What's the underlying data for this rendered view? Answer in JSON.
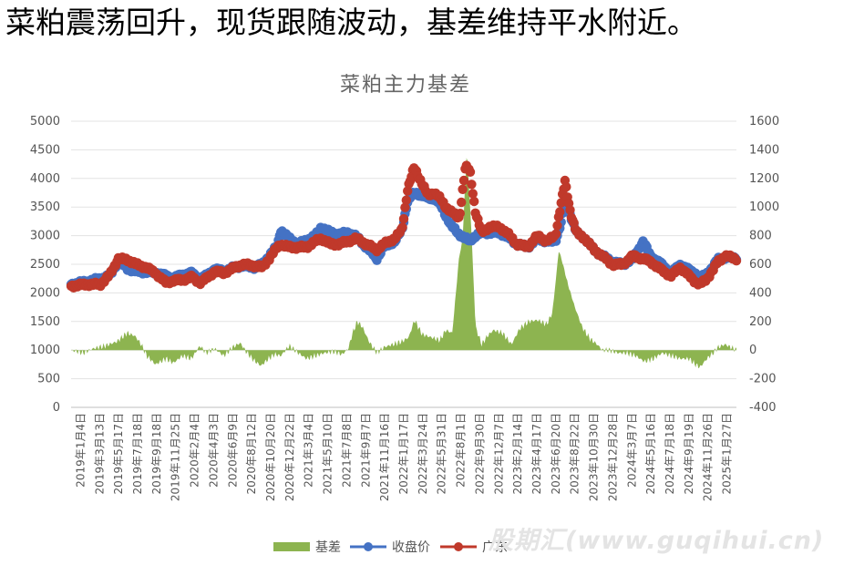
{
  "headline": "菜粕震荡回升，现货跟随波动，基差维持平水附近。",
  "watermark": "股期汇(www.guqihui.cn)",
  "chart_data": {
    "type": "line",
    "title": "菜粕主力基差",
    "y_left": {
      "min": 0,
      "max": 5000,
      "step": 500,
      "ticks": [
        "0",
        "500",
        "1000",
        "1500",
        "2000",
        "2500",
        "3000",
        "3500",
        "4000",
        "4500",
        "5000"
      ]
    },
    "y_right": {
      "min": -400,
      "max": 1600,
      "step": 200,
      "ticks": [
        "-400",
        "-200",
        "0",
        "200",
        "400",
        "600",
        "800",
        "1000",
        "1200",
        "1400",
        "1600"
      ]
    },
    "x_start": "2019-01-04",
    "x_end": "2025-03-31",
    "x_tick_labels": [
      "2019年1月4日",
      "2019年3月13日",
      "2019年5月17日",
      "2019年7月18日",
      "2019年9月18日",
      "2019年11月25日",
      "2020年2月4日",
      "2020年4月3日",
      "2020年6月9日",
      "2020年8月12日",
      "2020年10月20日",
      "2020年12月22日",
      "2021年3月4日",
      "2021年5月10日",
      "2021年7月8日",
      "2021年9月7日",
      "2021年11月16日",
      "2022年1月17日",
      "2022年3月24日",
      "2022年5月31日",
      "2022年8月1日",
      "2022年9月30日",
      "2022年12月7日",
      "2023年2月14日",
      "2023年4月17日",
      "2023年6月20日",
      "2023年8月22日",
      "2023年10月30日",
      "2023年12月28日",
      "2024年3月7日",
      "2024年5月16日",
      "2024年7月18日",
      "2024年9月19日",
      "2024年11月26日",
      "2025年1月27日"
    ],
    "legend_position": "bottom",
    "series": [
      {
        "name": "基差",
        "type": "area",
        "axis": "right",
        "color": "#8db450",
        "x": [
          "2019-01-04",
          "2019-02-15",
          "2019-03-20",
          "2019-05-01",
          "2019-06-10",
          "2019-07-15",
          "2019-08-10",
          "2019-09-01",
          "2019-09-20",
          "2019-10-20",
          "2019-11-25",
          "2019-12-20",
          "2020-01-20",
          "2020-02-20",
          "2020-03-20",
          "2020-04-10",
          "2020-05-10",
          "2020-06-10",
          "2020-07-10",
          "2020-08-05",
          "2020-08-25",
          "2020-09-20",
          "2020-10-15",
          "2020-11-10",
          "2020-12-01",
          "2020-12-22",
          "2021-01-20",
          "2021-02-20",
          "2021-03-20",
          "2021-04-20",
          "2021-05-20",
          "2021-06-20",
          "2021-07-20",
          "2021-08-10",
          "2021-08-25",
          "2021-09-10",
          "2021-09-28",
          "2021-10-20",
          "2021-11-16",
          "2021-12-10",
          "2022-01-10",
          "2022-02-10",
          "2022-03-05",
          "2022-03-25",
          "2022-04-20",
          "2022-05-20",
          "2022-06-20",
          "2022-07-10",
          "2022-08-01",
          "2022-08-25",
          "2022-09-05",
          "2022-09-20",
          "2022-10-05",
          "2022-10-20",
          "2022-11-10",
          "2022-11-30",
          "2022-12-20",
          "2023-01-20",
          "2023-02-20",
          "2023-03-20",
          "2023-04-20",
          "2023-05-20",
          "2023-06-20",
          "2023-07-10",
          "2023-08-01",
          "2023-08-15",
          "2023-09-01",
          "2023-09-25",
          "2023-10-20",
          "2023-11-15",
          "2023-12-10",
          "2023-12-28",
          "2024-01-20",
          "2024-02-20",
          "2024-03-20",
          "2024-04-20",
          "2024-05-20",
          "2024-06-20",
          "2024-07-20",
          "2024-08-20",
          "2024-09-20",
          "2024-10-20",
          "2024-11-10",
          "2024-11-26",
          "2024-12-20",
          "2025-01-10",
          "2025-01-27",
          "2025-02-20",
          "2025-03-31"
        ],
        "values": [
          0,
          -20,
          10,
          30,
          60,
          120,
          100,
          40,
          -40,
          -100,
          -60,
          -90,
          -40,
          -60,
          30,
          -20,
          10,
          -40,
          20,
          50,
          -10,
          -70,
          -110,
          -60,
          -30,
          -40,
          30,
          -20,
          -60,
          -40,
          -20,
          -10,
          -30,
          10,
          120,
          200,
          160,
          60,
          -20,
          20,
          40,
          60,
          90,
          210,
          110,
          90,
          70,
          140,
          120,
          660,
          760,
          1400,
          860,
          160,
          40,
          100,
          140,
          120,
          40,
          150,
          200,
          210,
          180,
          260,
          700,
          600,
          460,
          300,
          160,
          80,
          40,
          0,
          0,
          -20,
          -20,
          -40,
          -80,
          -60,
          -20,
          -40,
          -60,
          -60,
          -100,
          -120,
          -60,
          -20,
          20,
          40,
          0
        ]
      },
      {
        "name": "收盘价",
        "type": "line",
        "axis": "left",
        "color": "#4472c4",
        "x": [
          "2019-01-04",
          "2019-03-01",
          "2019-04-15",
          "2019-05-17",
          "2019-06-15",
          "2019-07-18",
          "2019-08-15",
          "2019-09-18",
          "2019-10-20",
          "2019-11-25",
          "2019-12-20",
          "2020-01-20",
          "2020-02-20",
          "2020-03-20",
          "2020-04-10",
          "2020-05-10",
          "2020-06-09",
          "2020-07-10",
          "2020-08-12",
          "2020-09-20",
          "2020-10-20",
          "2020-11-20",
          "2020-12-10",
          "2020-12-22",
          "2021-01-20",
          "2021-02-20",
          "2021-03-20",
          "2021-04-20",
          "2021-05-10",
          "2021-06-10",
          "2021-07-08",
          "2021-08-10",
          "2021-09-07",
          "2021-10-10",
          "2021-11-16",
          "2021-12-10",
          "2022-01-17",
          "2022-02-10",
          "2022-03-01",
          "2022-03-24",
          "2022-04-20",
          "2022-05-10",
          "2022-05-31",
          "2022-06-20",
          "2022-07-10",
          "2022-08-01",
          "2022-08-25",
          "2022-09-15",
          "2022-09-30",
          "2022-10-20",
          "2022-11-10",
          "2022-12-07",
          "2023-01-10",
          "2023-02-14",
          "2023-03-10",
          "2023-04-17",
          "2023-05-20",
          "2023-06-20",
          "2023-07-20",
          "2023-08-10",
          "2023-08-22",
          "2023-09-10",
          "2023-10-01",
          "2023-10-30",
          "2023-11-30",
          "2023-12-28",
          "2024-01-30",
          "2024-03-07",
          "2024-04-10",
          "2024-05-16",
          "2024-06-10",
          "2024-07-18",
          "2024-08-20",
          "2024-09-19",
          "2024-10-20",
          "2024-11-10",
          "2024-11-26",
          "2024-12-20",
          "2025-01-10",
          "2025-01-27",
          "2025-02-20",
          "2025-03-31"
        ],
        "values": [
          2150,
          2200,
          2250,
          2300,
          2560,
          2420,
          2380,
          2370,
          2360,
          2300,
          2260,
          2320,
          2350,
          2250,
          2300,
          2420,
          2380,
          2440,
          2480,
          2450,
          2500,
          2700,
          2820,
          3100,
          2950,
          2850,
          2920,
          3000,
          3150,
          3050,
          3020,
          3050,
          2980,
          2800,
          2600,
          2800,
          2900,
          3100,
          3600,
          3750,
          3700,
          3650,
          3650,
          3550,
          3350,
          3150,
          3020,
          2950,
          2900,
          3000,
          3050,
          3050,
          3050,
          2950,
          2850,
          2800,
          2950,
          2900,
          2900,
          3250,
          3650,
          3350,
          3050,
          2950,
          2750,
          2650,
          2550,
          2500,
          2600,
          2900,
          2650,
          2500,
          2350,
          2500,
          2400,
          2350,
          2250,
          2350,
          2450,
          2600,
          2620,
          2620
        ]
      },
      {
        "name": "广东",
        "type": "line",
        "axis": "left",
        "color": "#c0392b",
        "x": [
          "2019-01-04",
          "2019-03-01",
          "2019-04-15",
          "2019-05-17",
          "2019-06-15",
          "2019-07-18",
          "2019-08-15",
          "2019-09-18",
          "2019-10-20",
          "2019-11-25",
          "2019-12-20",
          "2020-01-20",
          "2020-02-20",
          "2020-03-20",
          "2020-04-10",
          "2020-05-10",
          "2020-06-09",
          "2020-07-10",
          "2020-08-12",
          "2020-09-20",
          "2020-10-20",
          "2020-11-20",
          "2020-12-10",
          "2020-12-22",
          "2021-01-20",
          "2021-02-20",
          "2021-03-20",
          "2021-04-20",
          "2021-05-10",
          "2021-06-10",
          "2021-07-08",
          "2021-08-10",
          "2021-09-07",
          "2021-10-10",
          "2021-11-16",
          "2021-12-10",
          "2022-01-17",
          "2022-02-10",
          "2022-03-01",
          "2022-03-24",
          "2022-04-20",
          "2022-05-10",
          "2022-05-31",
          "2022-06-20",
          "2022-07-10",
          "2022-08-01",
          "2022-08-25",
          "2022-09-15",
          "2022-09-30",
          "2022-10-20",
          "2022-11-10",
          "2022-12-07",
          "2023-01-10",
          "2023-02-14",
          "2023-03-10",
          "2023-04-17",
          "2023-05-20",
          "2023-06-20",
          "2023-07-20",
          "2023-08-10",
          "2023-08-22",
          "2023-09-10",
          "2023-10-01",
          "2023-10-30",
          "2023-11-30",
          "2023-12-28",
          "2024-01-30",
          "2024-03-07",
          "2024-04-10",
          "2024-05-16",
          "2024-06-10",
          "2024-07-18",
          "2024-08-20",
          "2024-09-19",
          "2024-10-20",
          "2024-11-10",
          "2024-11-26",
          "2024-12-20",
          "2025-01-10",
          "2025-01-27",
          "2025-02-20",
          "2025-03-31"
        ],
        "values": [
          2120,
          2150,
          2150,
          2320,
          2600,
          2580,
          2500,
          2450,
          2350,
          2180,
          2220,
          2230,
          2280,
          2180,
          2250,
          2380,
          2350,
          2430,
          2500,
          2480,
          2450,
          2650,
          2800,
          2850,
          2800,
          2800,
          2800,
          2900,
          2950,
          2850,
          2850,
          2900,
          2950,
          2850,
          2750,
          2850,
          2950,
          3100,
          3800,
          4200,
          3900,
          3700,
          3750,
          3650,
          3500,
          3400,
          3300,
          4200,
          4150,
          3400,
          3050,
          3150,
          3150,
          3000,
          2850,
          2800,
          3000,
          2900,
          3000,
          3600,
          3950,
          3400,
          3050,
          2950,
          2750,
          2650,
          2500,
          2500,
          2650,
          2600,
          2550,
          2400,
          2300,
          2450,
          2300,
          2200,
          2150,
          2250,
          2400,
          2550,
          2650,
          2600
        ]
      }
    ]
  }
}
